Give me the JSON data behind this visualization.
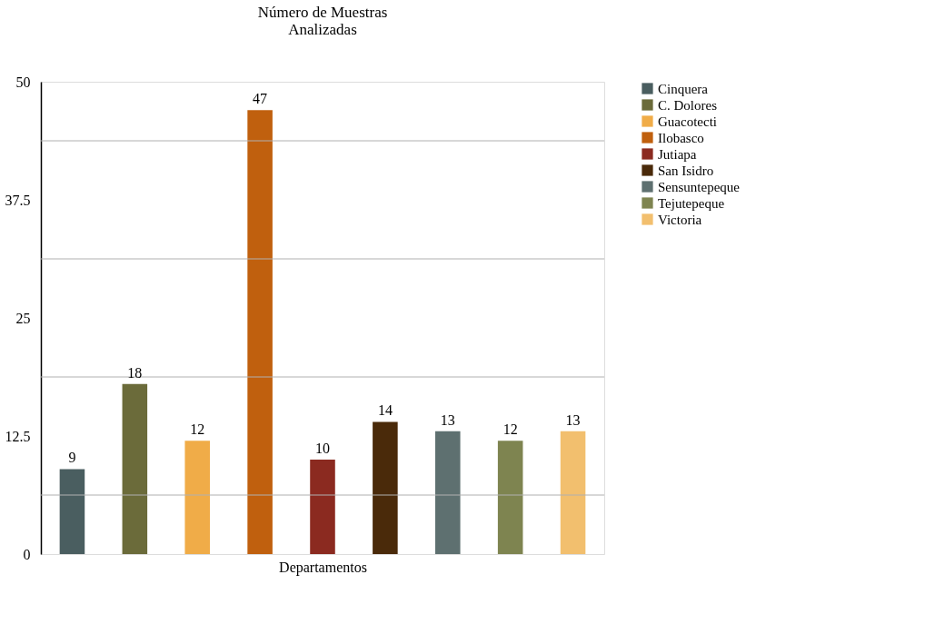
{
  "chart_data": {
    "type": "bar",
    "title": "Número de Muestras\nAnalizadas",
    "xlabel": "Departamentos",
    "categories": [
      null,
      null,
      null,
      null,
      null,
      null,
      null,
      null,
      null
    ],
    "series": [
      {
        "name": "Cinquera",
        "color": "#4a5e60",
        "values": [
          9,
          null,
          null,
          null,
          null,
          null,
          null,
          null,
          null
        ]
      },
      {
        "name": "C. Dolores",
        "color": "#6b6b3a",
        "values": [
          null,
          18,
          null,
          null,
          null,
          null,
          null,
          null,
          null
        ]
      },
      {
        "name": "Guacotecti",
        "color": "#f0ac48",
        "values": [
          null,
          null,
          12,
          null,
          null,
          null,
          null,
          null,
          null
        ]
      },
      {
        "name": "Ilobasco",
        "color": "#c0600e",
        "values": [
          null,
          null,
          null,
          47,
          null,
          null,
          null,
          null,
          null
        ]
      },
      {
        "name": "Jutiapa",
        "color": "#8b2a20",
        "values": [
          null,
          null,
          null,
          null,
          10,
          null,
          null,
          null,
          null
        ]
      },
      {
        "name": "San Isidro",
        "color": "#4a2a0a",
        "values": [
          null,
          null,
          null,
          null,
          null,
          14,
          null,
          null,
          null
        ]
      },
      {
        "name": "Sensuntepeque",
        "color": "#5e7070",
        "values": [
          null,
          null,
          null,
          null,
          null,
          null,
          13,
          null,
          null
        ]
      },
      {
        "name": "Tejutepeque",
        "color": "#7e8450",
        "values": [
          null,
          null,
          null,
          null,
          null,
          null,
          null,
          12,
          null
        ]
      },
      {
        "name": "Victoria",
        "color": "#f2bf6e",
        "values": [
          null,
          null,
          null,
          null,
          null,
          null,
          null,
          null,
          13
        ]
      }
    ],
    "ylim": [
      0,
      50
    ],
    "yticks": [
      0,
      {
        "value": 6.25,
        "label": null
      },
      12.5,
      {
        "value": 18.75,
        "label": null
      },
      25,
      {
        "value": 31.25,
        "label": null
      },
      37.5,
      {
        "value": 43.75,
        "label": null
      },
      50
    ],
    "grid": "y",
    "legend": "right",
    "data_labels": true
  }
}
